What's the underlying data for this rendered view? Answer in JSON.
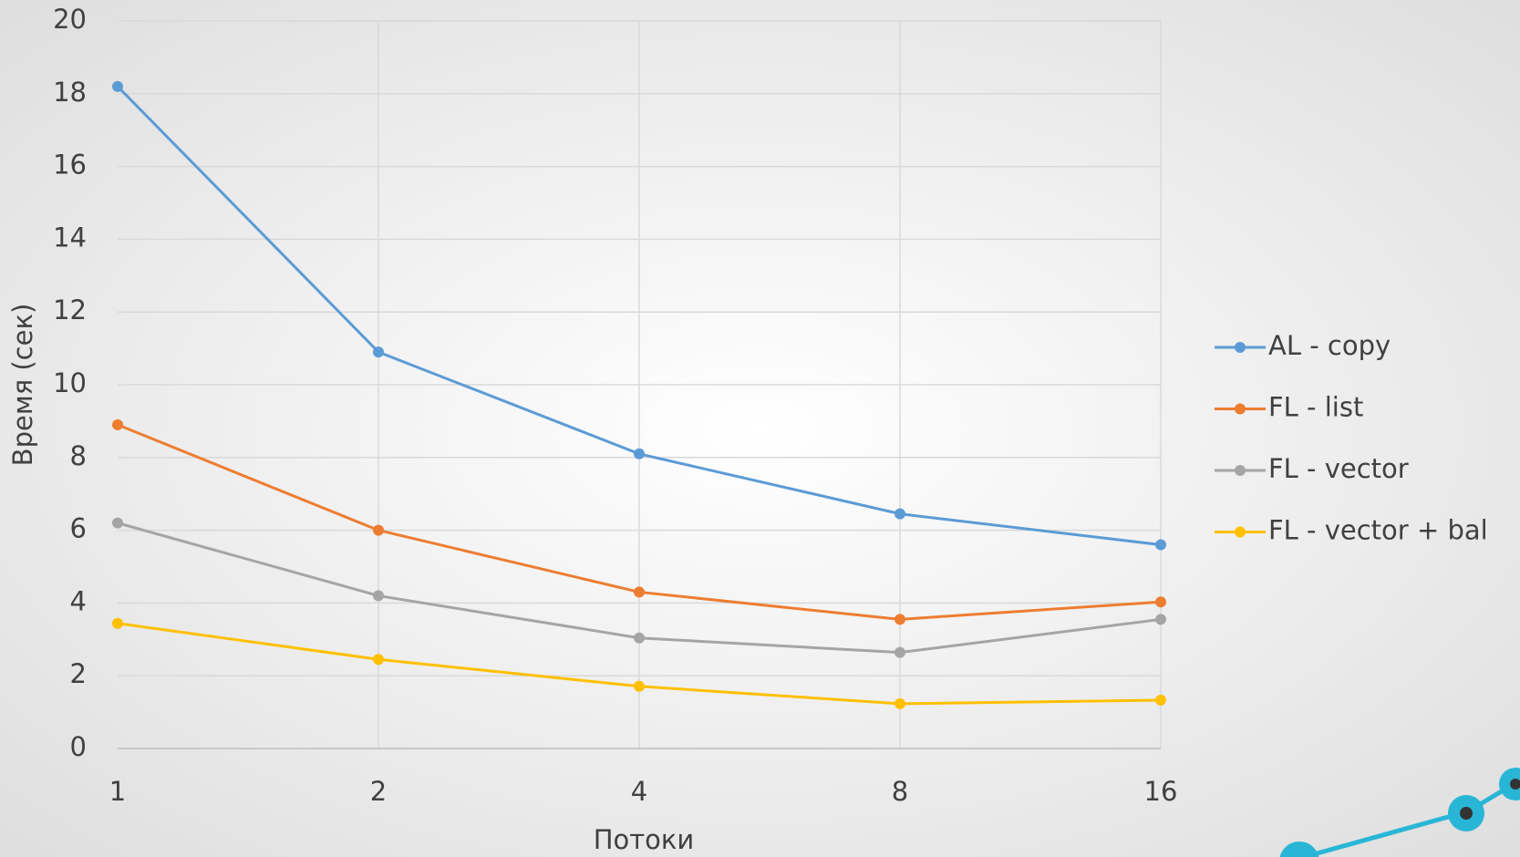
{
  "chart_data": {
    "type": "line",
    "x_label": "Потоки",
    "y_label": "Время (сек)",
    "categories": [
      "1",
      "2",
      "4",
      "8",
      "16"
    ],
    "series": [
      {
        "name": "AL - copy",
        "color": "#5b9bd5",
        "values": [
          18.2,
          10.9,
          8.1,
          6.45,
          5.6
        ]
      },
      {
        "name": "FL - list",
        "color": "#ed7d31",
        "values": [
          8.9,
          6.0,
          4.3,
          3.55,
          4.03
        ]
      },
      {
        "name": "FL - vector",
        "color": "#a5a5a5",
        "values": [
          6.2,
          4.2,
          3.04,
          2.64,
          3.55
        ]
      },
      {
        "name": "FL - vector + bal",
        "color": "#ffc000",
        "values": [
          3.44,
          2.45,
          1.71,
          1.23,
          1.33
        ]
      }
    ],
    "ylim": [
      0,
      20
    ],
    "yticks": [
      0,
      2,
      4,
      6,
      8,
      10,
      12,
      14,
      16,
      18,
      20
    ],
    "grid": true,
    "legend": "right"
  }
}
